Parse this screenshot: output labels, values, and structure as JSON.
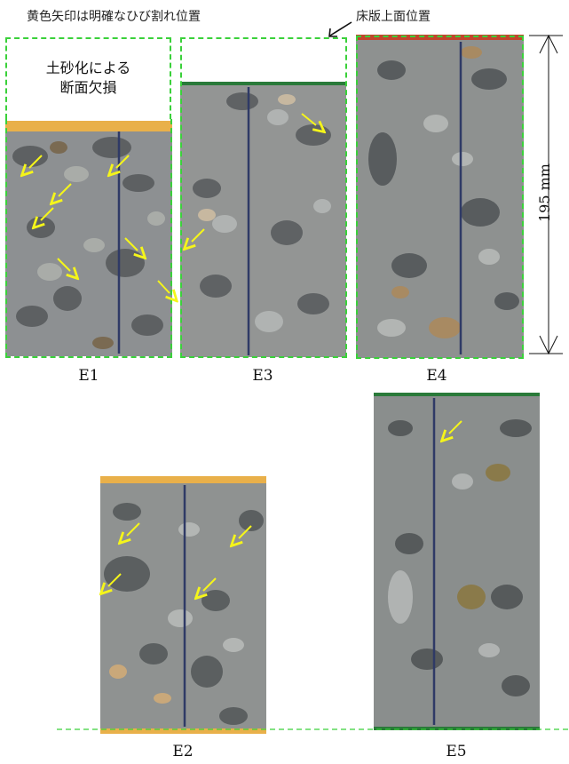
{
  "annotations": {
    "crack_note": "黄色矢印は明確なひび割れ位置",
    "surface_note": "床版上面位置",
    "loss_note_line1": "土砂化による",
    "loss_note_line2": "断面欠損",
    "dimension": "195 mm"
  },
  "cores": [
    {
      "id": "E1"
    },
    {
      "id": "E3"
    },
    {
      "id": "E4"
    },
    {
      "id": "E2"
    },
    {
      "id": "E5"
    }
  ],
  "colors": {
    "guide_dash": "#3ad13a",
    "crack_arrow": "#f5f51a",
    "top_surface_band": "#e9b04a"
  }
}
